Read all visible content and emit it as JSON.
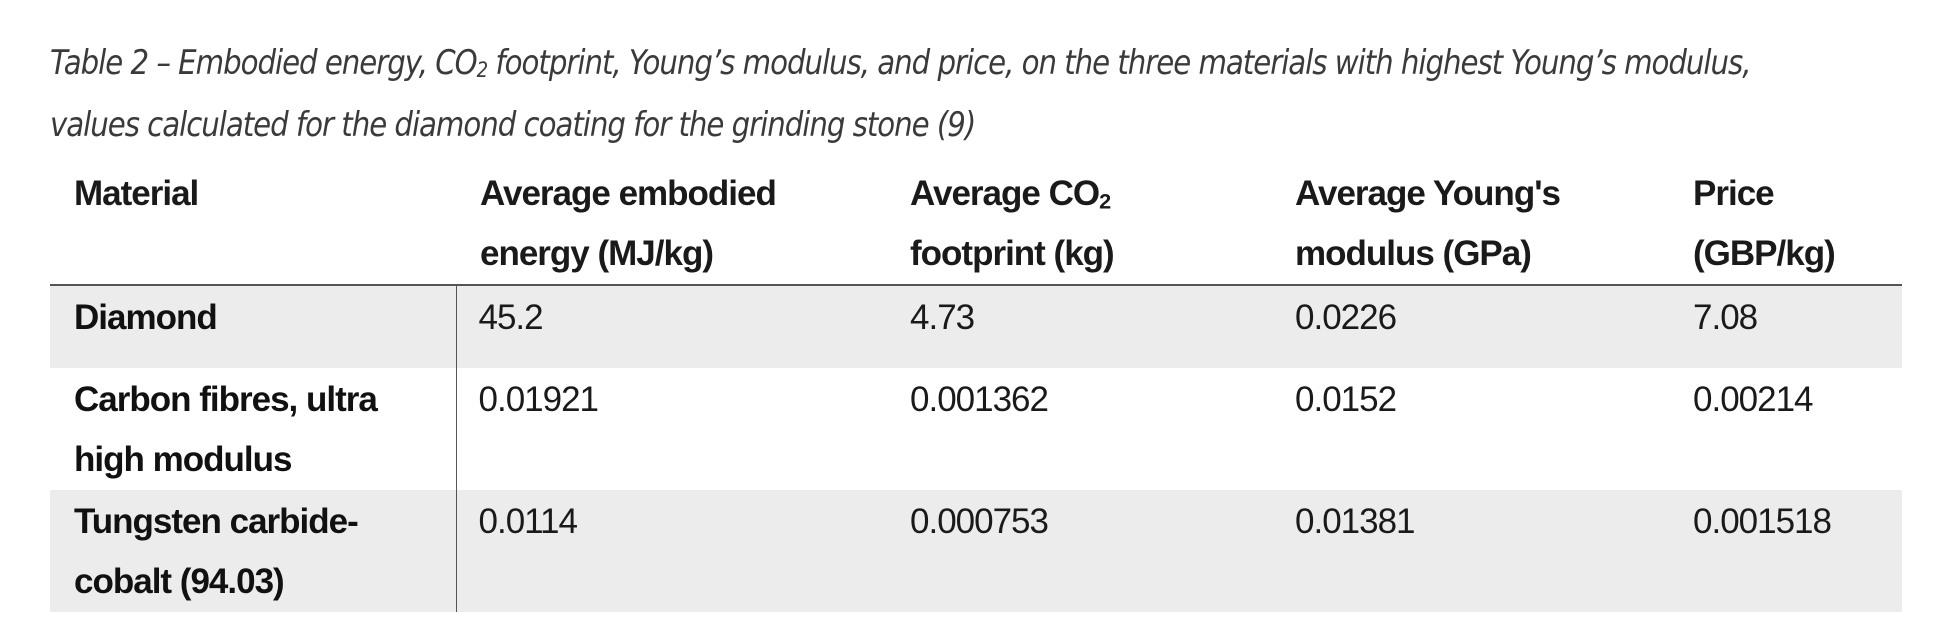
{
  "caption": {
    "line1_before_sub": "Table 2 – Embodied energy, CO",
    "line1_sub": "2",
    "line1_after_sub": " footprint,  Young’s modulus, and price, on the three materials with highest Young’s modulus,",
    "line2": "values calculated for the diamond coating for the grinding stone (9)"
  },
  "table": {
    "headers": [
      {
        "line1": "Material",
        "line2": ""
      },
      {
        "line1": "Average embodied",
        "line2": "energy (MJ/kg)"
      },
      {
        "line1_before_sub": "Average CO",
        "line1_sub": "2",
        "line2": "footprint (kg)"
      },
      {
        "line1": "Average Young's",
        "line2": "modulus (GPa)"
      },
      {
        "line1": "Price",
        "line2": "(GBP/kg)"
      }
    ],
    "rows": [
      {
        "material_line1": "Diamond",
        "material_line2": "",
        "energy": "45.2",
        "co2": "4.73",
        "youngs": "0.0226",
        "price": "7.08"
      },
      {
        "material_line1": "Carbon fibres, ultra",
        "material_line2": "high modulus",
        "energy": "0.01921",
        "co2": "0.001362",
        "youngs": "0.0152",
        "price": "0.00214"
      },
      {
        "material_line1": "Tungsten carbide-",
        "material_line2": "cobalt (94.03)",
        "energy": "0.0114",
        "co2": "0.000753",
        "youngs": "0.01381",
        "price": "0.001518"
      }
    ]
  }
}
